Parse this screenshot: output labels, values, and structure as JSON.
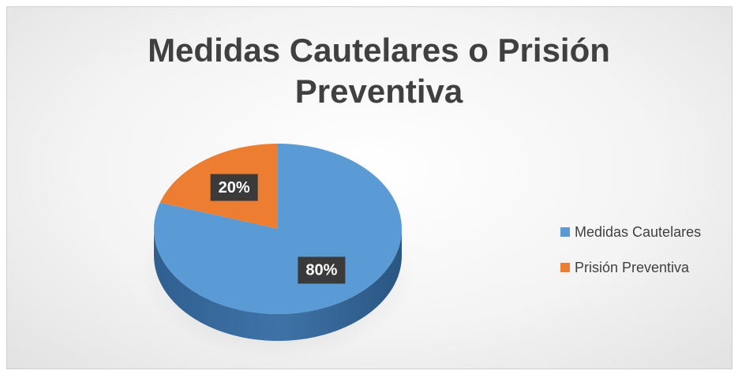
{
  "chart_data": {
    "type": "pie",
    "title": "Medidas Cautelares o Prisión Preventiva",
    "categories": [
      "Medidas Cautelares",
      "Prisión Preventiva"
    ],
    "values": [
      80,
      20
    ],
    "value_labels": [
      "80%",
      "20%"
    ],
    "colors": [
      "#5b9bd5",
      "#ed7d31"
    ],
    "legend": "right"
  }
}
